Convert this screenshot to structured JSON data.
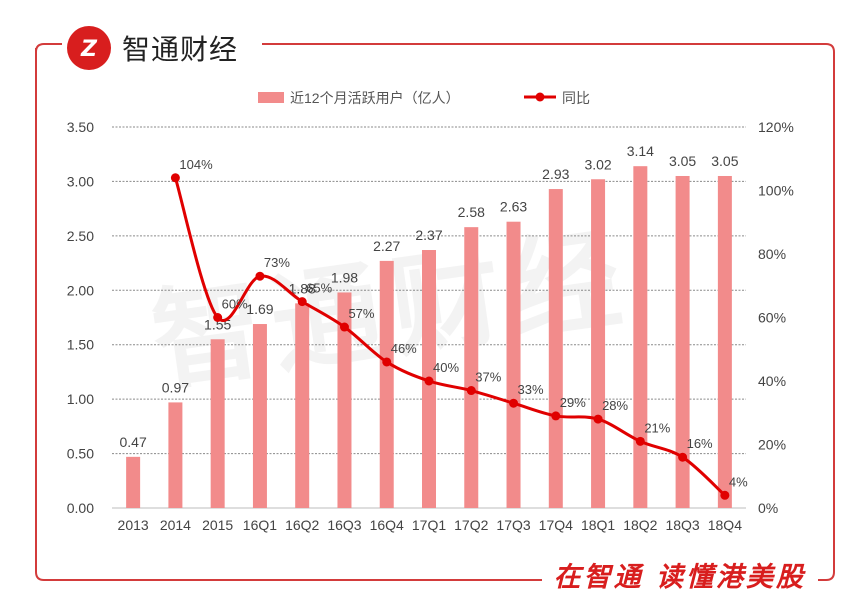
{
  "brand": {
    "name": "智通财经"
  },
  "footer": {
    "slogan": "在智通 读懂港美股"
  },
  "watermark": "智通财经",
  "colors": {
    "bar": "#f28b8b",
    "line": "#e00000",
    "frame": "#d33b3b",
    "slogan": "#d81e1e"
  },
  "chart_data": {
    "type": "bar+line",
    "categories": [
      "2013",
      "2014",
      "2015",
      "16Q1",
      "16Q2",
      "16Q3",
      "16Q4",
      "17Q1",
      "17Q2",
      "17Q3",
      "17Q4",
      "18Q1",
      "18Q2",
      "18Q3",
      "18Q4"
    ],
    "series": [
      {
        "name": "近12个月活跃用户（亿人）",
        "type": "bar",
        "axis": "left",
        "values": [
          0.47,
          0.97,
          1.55,
          1.69,
          1.88,
          1.98,
          2.27,
          2.37,
          2.58,
          2.63,
          2.93,
          3.02,
          3.14,
          3.05,
          3.05
        ],
        "labels": [
          "0.47",
          "0.97",
          "1.55",
          "1.69",
          "1.88",
          "1.98",
          "2.27",
          "2.37",
          "2.58",
          "2.63",
          "2.93",
          "3.02",
          "3.14",
          "3.05",
          "3.05"
        ]
      },
      {
        "name": "同比",
        "type": "line",
        "axis": "right",
        "values": [
          null,
          104,
          60,
          73,
          65,
          57,
          46,
          40,
          37,
          33,
          29,
          28,
          21,
          16,
          4
        ],
        "labels": [
          null,
          "104%",
          "60%",
          "73%",
          "65%",
          "57%",
          "46%",
          "40%",
          "37%",
          "33%",
          "29%",
          "28%",
          "21%",
          "16%",
          "4%"
        ]
      }
    ],
    "y_left": {
      "min": 0,
      "max": 3.5,
      "ticks": [
        "0.00",
        "0.50",
        "1.00",
        "1.50",
        "2.00",
        "2.50",
        "3.00",
        "3.50"
      ]
    },
    "y_right": {
      "min": 0,
      "max": 120,
      "ticks": [
        "0%",
        "20%",
        "40%",
        "60%",
        "80%",
        "100%",
        "120%"
      ]
    },
    "grid": "horizontal-dashed",
    "legend": "top"
  }
}
